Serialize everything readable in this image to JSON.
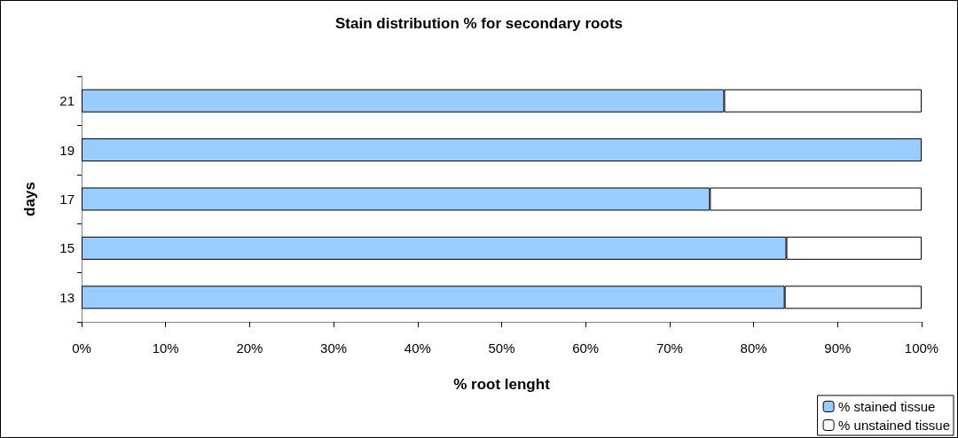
{
  "chart_data": {
    "type": "bar",
    "orientation": "horizontal",
    "stacked": true,
    "title": "Stain distribution % for secondary roots",
    "xlabel": "% root lenght",
    "ylabel": "days",
    "categories": [
      "21",
      "19",
      "17",
      "15",
      "13"
    ],
    "series": [
      {
        "name": "% stained tissue",
        "color": "#99ccff",
        "values": [
          76.5,
          100,
          74.8,
          83.9,
          83.7
        ]
      },
      {
        "name": "% unstained tissue",
        "color": "#ffffff",
        "values": [
          23.5,
          0,
          25.2,
          16.1,
          16.3
        ]
      }
    ],
    "xlim": [
      0,
      100
    ],
    "xticks": [
      {
        "value": 0,
        "label": "0%"
      },
      {
        "value": 10,
        "label": "10%"
      },
      {
        "value": 20,
        "label": "20%"
      },
      {
        "value": 30,
        "label": "30%"
      },
      {
        "value": 40,
        "label": "40%"
      },
      {
        "value": 50,
        "label": "50%"
      },
      {
        "value": 60,
        "label": "60%"
      },
      {
        "value": 70,
        "label": "70%"
      },
      {
        "value": 80,
        "label": "80%"
      },
      {
        "value": 90,
        "label": "90%"
      },
      {
        "value": 100,
        "label": "100%"
      }
    ],
    "grid": false,
    "legend": "bottom right"
  }
}
